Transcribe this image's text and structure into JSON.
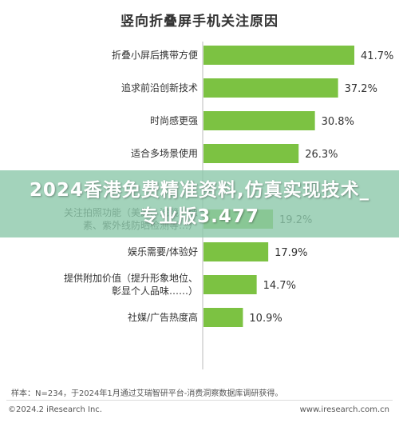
{
  "chart_data": {
    "type": "bar",
    "orientation": "horizontal",
    "title": "竖向折叠屏手机关注原因",
    "categories": [
      [
        "折叠小屏后携带方便"
      ],
      [
        "追求前沿创新技术"
      ],
      [
        "时尚感更强"
      ],
      [
        "适合多场景使用"
      ],
      [
        ""
      ],
      [
        "关注拍照功能（美颜、滤镜、像",
        "素、紫外线防晒检测等…）"
      ],
      [
        "娱乐需要/体验好"
      ],
      [
        "提供附加价值（提升形象地位、",
        "彰显个人品味……）"
      ],
      [
        "社媒/广告热度高"
      ]
    ],
    "values": [
      41.7,
      37.2,
      30.8,
      26.3,
      null,
      19.2,
      17.9,
      14.7,
      10.9
    ],
    "value_labels": [
      "41.7%",
      "37.2%",
      "30.8%",
      "26.3%",
      "",
      "19.2%",
      "17.9%",
      "14.7%",
      "10.9%"
    ],
    "bar_color": "#7cc242",
    "xlim": [
      0,
      45
    ]
  },
  "overlay": {
    "text": "2024香港免费精准资料,仿真实现技术_专业版3.477",
    "color": "#8cc8aa"
  },
  "footnote": "样本：N=234，于2024年1月通过艾瑞智研平台-消费洞察数据库调研获得。",
  "copyright": "©2024.2 iResearch Inc.",
  "website": "www.iresearch.com.cn"
}
